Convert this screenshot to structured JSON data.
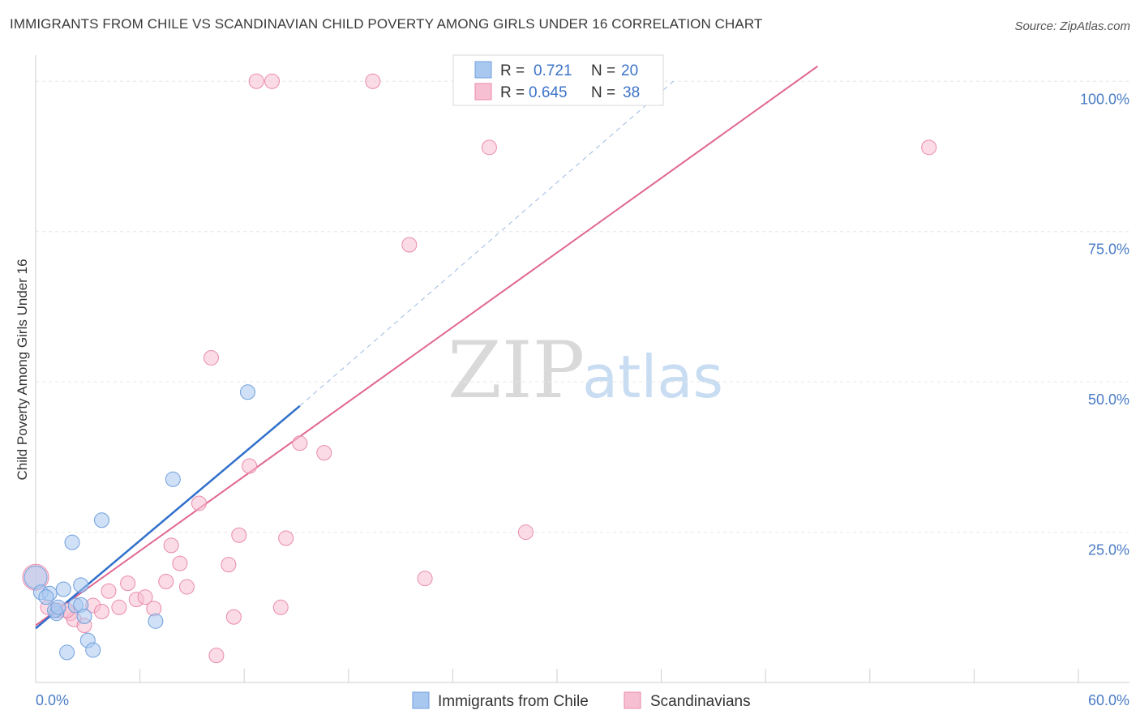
{
  "header": {
    "title": "IMMIGRANTS FROM CHILE VS SCANDINAVIAN CHILD POVERTY AMONG GIRLS UNDER 16 CORRELATION CHART",
    "source": "Source: ZipAtlas.com"
  },
  "watermark": {
    "zip": "ZIP",
    "atlas": "atlas"
  },
  "legend": {
    "r_label": "R =",
    "n_label": "N =",
    "rows": [
      {
        "r": "0.721",
        "n": "20"
      },
      {
        "r": "0.645",
        "n": "38"
      }
    ]
  },
  "colors": {
    "chile_fill": "#a9c8f0",
    "chile_stroke": "#6f9fdc",
    "chile_line": "#2f6fcb",
    "scand_fill": "#f7bfd2",
    "scand_stroke": "#e98aaa",
    "scand_line": "#e0668f",
    "grid": "#e6e6e6",
    "tick": "#4a7cc4"
  },
  "chart_data": {
    "type": "scatter",
    "title": "IMMIGRANTS FROM CHILE VS SCANDINAVIAN CHILD POVERTY AMONG GIRLS UNDER 16 CORRELATION CHART",
    "xlabel": "",
    "ylabel": "Child Poverty Among Girls Under 16",
    "xlim": [
      0,
      60
    ],
    "ylim": [
      0,
      103
    ],
    "x_tick_labels": [
      "0.0%",
      "60.0%"
    ],
    "y_ticks": [
      {
        "value": 25,
        "label": "25.0%"
      },
      {
        "value": 50,
        "label": "50.0%"
      },
      {
        "value": 75,
        "label": "75.0%"
      },
      {
        "value": 100,
        "label": "100.0%"
      }
    ],
    "series": [
      {
        "name": "Immigrants from Chile",
        "r": 0.721,
        "n": 20,
        "points": [
          [
            0.0,
            17.5,
            14
          ],
          [
            0.3,
            15.0,
            9
          ],
          [
            0.8,
            14.8,
            9
          ],
          [
            1.2,
            11.5,
            9
          ],
          [
            1.1,
            12.0,
            9
          ],
          [
            1.6,
            15.5,
            9
          ],
          [
            2.1,
            23.3,
            9
          ],
          [
            2.3,
            12.8,
            9
          ],
          [
            2.6,
            12.9,
            9
          ],
          [
            2.6,
            16.2,
            9
          ],
          [
            2.8,
            11.0,
            9
          ],
          [
            3.0,
            7.0,
            9
          ],
          [
            1.8,
            5.0,
            9
          ],
          [
            3.3,
            5.4,
            9
          ],
          [
            3.8,
            27.0,
            9
          ],
          [
            6.9,
            10.2,
            9
          ],
          [
            7.9,
            33.8,
            9
          ],
          [
            12.2,
            48.3,
            9
          ],
          [
            1.3,
            12.5,
            9
          ],
          [
            0.6,
            14.2,
            9
          ]
        ],
        "trend": {
          "x0": 0,
          "y0": 9.0,
          "x1": 15.2,
          "y1": 46.0,
          "dash_x1": 36.7,
          "dash_y1": 100
        }
      },
      {
        "name": "Scandinavians",
        "r": 0.645,
        "n": 38,
        "points": [
          [
            0.0,
            17.5,
            16
          ],
          [
            0.7,
            12.5,
            9
          ],
          [
            1.3,
            12.0,
            9
          ],
          [
            2.0,
            11.5,
            9
          ],
          [
            2.2,
            10.5,
            9
          ],
          [
            2.8,
            9.5,
            9
          ],
          [
            3.3,
            12.8,
            9
          ],
          [
            3.8,
            11.8,
            9
          ],
          [
            4.2,
            15.2,
            9
          ],
          [
            4.8,
            12.5,
            9
          ],
          [
            5.3,
            16.5,
            9
          ],
          [
            5.8,
            13.8,
            9
          ],
          [
            6.3,
            14.2,
            9
          ],
          [
            6.8,
            12.3,
            9
          ],
          [
            7.5,
            16.8,
            9
          ],
          [
            7.8,
            22.8,
            9
          ],
          [
            8.3,
            19.8,
            9
          ],
          [
            8.7,
            15.9,
            9
          ],
          [
            9.4,
            29.8,
            9
          ],
          [
            10.1,
            54.0,
            9
          ],
          [
            10.4,
            4.5,
            9
          ],
          [
            11.1,
            19.6,
            9
          ],
          [
            11.4,
            10.9,
            9
          ],
          [
            11.7,
            24.5,
            9
          ],
          [
            12.3,
            36.0,
            9
          ],
          [
            12.7,
            100.0,
            9
          ],
          [
            13.6,
            100.0,
            9
          ],
          [
            14.1,
            12.5,
            9
          ],
          [
            14.4,
            24.0,
            9
          ],
          [
            15.2,
            39.8,
            9
          ],
          [
            16.6,
            38.2,
            9
          ],
          [
            19.4,
            100.0,
            9
          ],
          [
            21.5,
            72.8,
            9
          ],
          [
            22.4,
            17.3,
            9
          ],
          [
            26.1,
            89.0,
            9
          ],
          [
            28.2,
            25.0,
            9
          ],
          [
            51.4,
            89.0,
            9
          ],
          [
            1.8,
            12.0,
            9
          ]
        ],
        "trend": {
          "x0": 0,
          "y0": 9.5,
          "x1": 45.0,
          "y1": 102.5
        }
      }
    ]
  },
  "bottom_legend": {
    "items": [
      {
        "label": "Immigrants from Chile"
      },
      {
        "label": "Scandinavians"
      }
    ]
  }
}
